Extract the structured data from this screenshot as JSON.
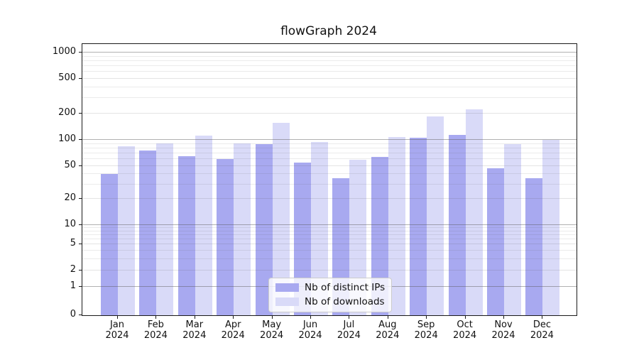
{
  "title": "flowGraph 2024",
  "legend": {
    "items": [
      {
        "label": "Nb of distinct IPs",
        "color": "#a8a9f0"
      },
      {
        "label": "Nb of downloads",
        "color": "#d9daf8"
      }
    ]
  },
  "axes": {
    "y_tick_values": [
      1000,
      500,
      200,
      100,
      50,
      20,
      10,
      5,
      2,
      1,
      0
    ],
    "x_tick_labels": [
      "Jan 2024",
      "Feb 2024",
      "Mar 2024",
      "Apr 2024",
      "May 2024",
      "Jun 2024",
      "Jul 2024",
      "Aug 2024",
      "Sep 2024",
      "Oct 2024",
      "Nov 2024",
      "Dec 2024"
    ]
  },
  "chart_data": {
    "type": "bar",
    "title": "flowGraph 2024",
    "categories": [
      "Jan 2024",
      "Feb 2024",
      "Mar 2024",
      "Apr 2024",
      "May 2024",
      "Jun 2024",
      "Jul 2024",
      "Aug 2024",
      "Sep 2024",
      "Oct 2024",
      "Nov 2024",
      "Dec 2024"
    ],
    "series": [
      {
        "name": "Nb of distinct IPs",
        "color": "#a8a9f0",
        "values": [
          40,
          75,
          65,
          60,
          90,
          55,
          36,
          64,
          105,
          114,
          47,
          36
        ]
      },
      {
        "name": "Nb of downloads",
        "color": "#d9daf8",
        "values": [
          85,
          92,
          111,
          91,
          157,
          94,
          59,
          108,
          185,
          222,
          90,
          100
        ]
      }
    ],
    "xlabel": "",
    "ylabel": "",
    "yscale": "symlog",
    "y_ticks": [
      0,
      1,
      2,
      5,
      10,
      20,
      50,
      100,
      200,
      500,
      1000
    ],
    "ylim": [
      0,
      1275
    ],
    "grid": true,
    "legend_position": "lower center"
  }
}
